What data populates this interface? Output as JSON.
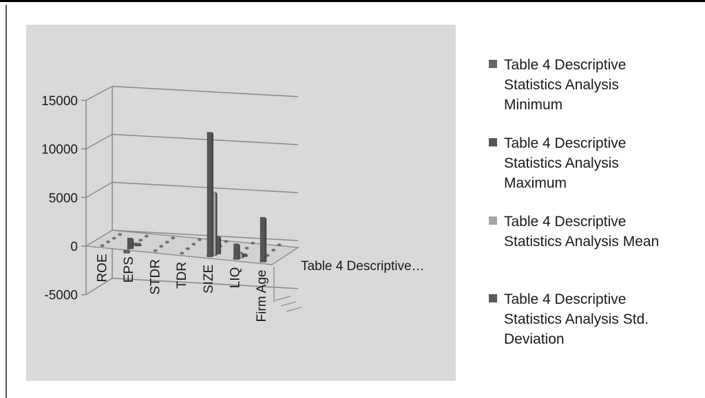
{
  "colors": {
    "plot_bg": "#d9d9d9",
    "grid": "#8c8c8c",
    "series": [
      "#666666",
      "#555555",
      "#a6a6a6",
      "#5a5a5a"
    ],
    "link": "#2a5db0"
  },
  "chart_data": {
    "type": "bar",
    "subtype": "3d-clustered-column",
    "title": "",
    "grid": true,
    "legend_position": "right",
    "ylim": [
      -5000,
      15000
    ],
    "y_ticks": [
      "15000",
      "10000",
      "5000",
      "0",
      "-5000"
    ],
    "y_tick_values": [
      15000,
      10000,
      5000,
      0,
      -5000
    ],
    "categories": [
      "ROE",
      "EPS",
      "STDR",
      "TDR",
      "SIZE",
      "LIQ",
      "Firm Age"
    ],
    "depth_axis_label": "Table 4 Descriptive…",
    "series": [
      {
        "name": "Table 4 Descriptive Statistics Analysis Minimum",
        "values": [
          -50,
          -300,
          -5,
          0,
          50,
          0,
          1
        ]
      },
      {
        "name": "Table 4 Descriptive Statistics Analysis Maximum",
        "values": [
          50,
          1100,
          1,
          1,
          12800,
          1600,
          4600
        ]
      },
      {
        "name": "Table 4 Descriptive Statistics Analysis Mean",
        "values": [
          5,
          200,
          0.3,
          0.5,
          6500,
          500,
          15
        ]
      },
      {
        "name": "Table 4 Descriptive Statistics Analysis Std. Deviation",
        "values": [
          20,
          300,
          0.1,
          0.2,
          1800,
          300,
          8
        ]
      }
    ],
    "legend": [
      {
        "lines": [
          "Table 4 Descriptive",
          "Statistics Analysis",
          "Minimum"
        ]
      },
      {
        "lines": [
          "Table 4 Descriptive",
          "Statistics Analysis",
          "Maximum"
        ]
      },
      {
        "lines": [
          "Table 4 Descriptive",
          "Statistics Analysis Mean"
        ]
      },
      {
        "lines": [
          "Table 4 Descriptive",
          "Statistics Analysis Std.",
          "Deviation"
        ]
      }
    ]
  }
}
